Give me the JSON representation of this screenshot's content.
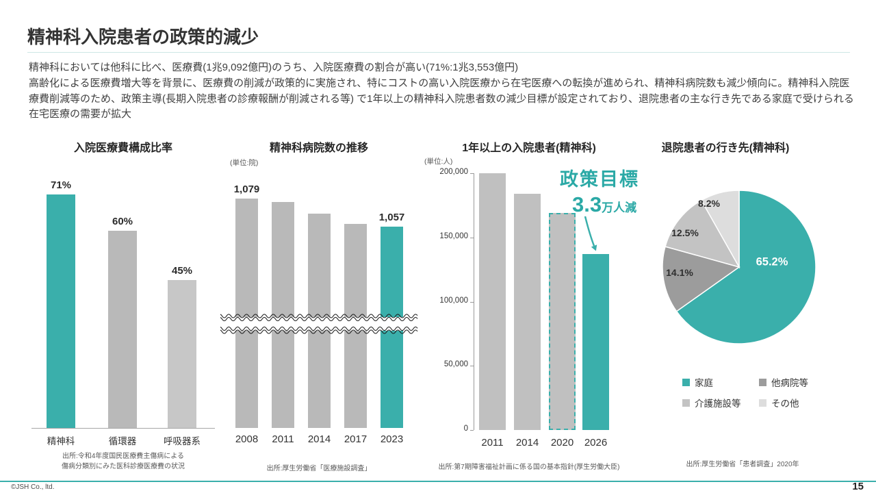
{
  "slide": {
    "title": "精神科入院患者の政策的減少",
    "body_lines": [
      "精神科においては他科に比べ、医療費(1兆9,092億円)のうち、入院医療費の割合が高い(71%:1兆3,553億円)",
      "高齢化による医療費増大等を背景に、医療費の削減が政策的に実施され、特にコストの高い入院医療から在宅医療への転換が進められ、精神科病院数も減少傾向に。精神科入院医療費削減等のため、政策主導(長期入院患者の診療報酬が削減される等) で1年以上の精神科入院患者数の減少目標が設定されており、退院患者の主な行き先である家庭で受けられる在宅医療の需要が拡大"
    ],
    "footer": {
      "copyright": "©JSH Co., ltd.",
      "page_number": "15"
    }
  },
  "colors": {
    "accent": "#3aafab",
    "bar_gray": "#b9b9b9",
    "footer_line": "#3aafab"
  },
  "chart_data": [
    {
      "id": "inpatient-cost-composition",
      "type": "bar",
      "title": "入院医療費構成比率",
      "categories": [
        "精神科",
        "循環器",
        "呼吸器系"
      ],
      "values": [
        71,
        60,
        45
      ],
      "value_labels": [
        "71%",
        "60%",
        "45%"
      ],
      "bar_colors": [
        "#3aafab",
        "#b9b9b9",
        "#c7c7c7"
      ],
      "ylim": [
        0,
        100
      ],
      "xlabel": "",
      "ylabel": "",
      "source": "出所:令和4年度国民医療費主傷病による\n傷病分類別にみた医科診療医療費の状況"
    },
    {
      "id": "psychiatric-hospital-count",
      "type": "bar",
      "title": "精神科病院数の推移",
      "unit": "(単位:院)",
      "categories": [
        "2008",
        "2011",
        "2014",
        "2017",
        "2023"
      ],
      "values": [
        1079,
        1076,
        1067,
        1059,
        1057
      ],
      "value_labels": [
        "1,079",
        "",
        "",
        "",
        "1,057"
      ],
      "bar_colors": [
        "#b9b9b9",
        "#b9b9b9",
        "#b9b9b9",
        "#b9b9b9",
        "#3aafab"
      ],
      "axis_break": true,
      "ylim": [
        0,
        1100
      ],
      "source": "出所:厚生労働省「医療施設調査」"
    },
    {
      "id": "long-stay-inpatients",
      "type": "bar",
      "title": "1年以上の入院患者(精神科)",
      "unit": "(単位:人)",
      "categories": [
        "2011",
        "2014",
        "2020",
        "2026"
      ],
      "values": [
        200000,
        184000,
        169000,
        137000
      ],
      "bar_colors": [
        "#c0c0c0",
        "#c0c0c0",
        "#c0c0c0",
        "#3aafab"
      ],
      "dashed_bar_index": 2,
      "ylim": [
        0,
        200000
      ],
      "ytick_labels": [
        "200,000",
        "150,000",
        "100,000",
        "50,000",
        "0"
      ],
      "annotation": {
        "line1": "政策目標",
        "value": "3.3",
        "suffix": "万人減"
      },
      "source": "出所:第7期障害福祉計画に係る国の基本指針(厚生労働大臣)"
    },
    {
      "id": "discharge-destination",
      "type": "pie",
      "title": "退院患者の行き先(精神科)",
      "slices": [
        {
          "label": "家庭",
          "value": 65.2,
          "text": "65.2%",
          "color": "#3aafab"
        },
        {
          "label": "他病院等",
          "value": 14.1,
          "text": "14.1%",
          "color": "#9c9c9c"
        },
        {
          "label": "介護施設等",
          "value": 12.5,
          "text": "12.5%",
          "color": "#c3c3c3"
        },
        {
          "label": "その他",
          "value": 8.2,
          "text": "8.2%",
          "color": "#dddddd"
        }
      ],
      "legend_position": "bottom",
      "source": "出所:厚生労働省「患者調査」2020年"
    }
  ]
}
